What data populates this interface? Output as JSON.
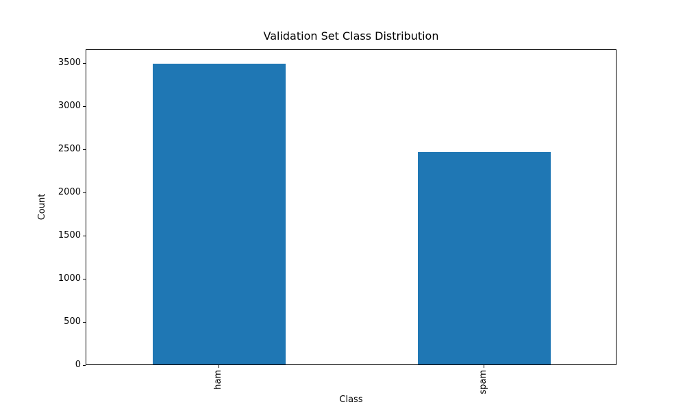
{
  "chart_data": {
    "type": "bar",
    "title": "Validation Set Class Distribution",
    "xlabel": "Class",
    "ylabel": "Count",
    "categories": [
      "ham",
      "spam"
    ],
    "values": [
      3480,
      2455
    ],
    "yticks": [
      0,
      500,
      1000,
      1500,
      2000,
      2500,
      3000,
      3500
    ],
    "ylim": [
      0,
      3655
    ],
    "bar_color": "#1f77b4",
    "bar_width_fraction": 0.5,
    "x_tick_rotation_deg": 90,
    "grid": false,
    "legend_position": "none",
    "background_color": "#ffffff",
    "text_color": "#000000"
  }
}
